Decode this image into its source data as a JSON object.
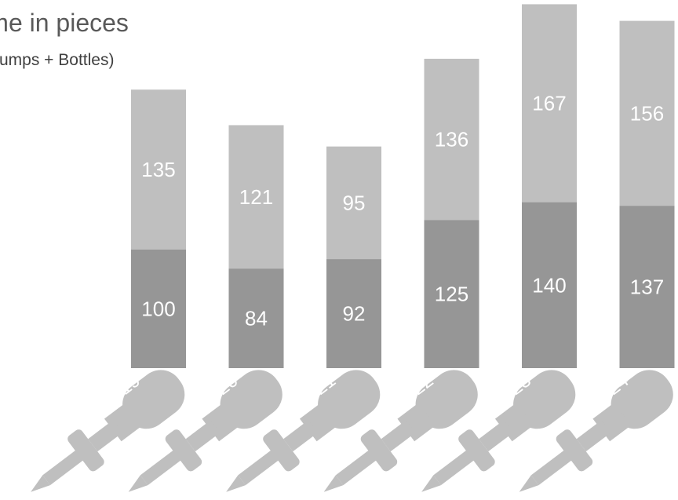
{
  "chart_data": {
    "type": "bar",
    "stacked": true,
    "title": "Volume in pieces",
    "subtitle": "(Pumps + Bottles)",
    "categories": [
      "2019",
      "2020",
      "2021",
      "2022",
      "2023",
      "2024"
    ],
    "series": [
      {
        "values": [
          100,
          84,
          92,
          125,
          140,
          137
        ],
        "color": "#969696"
      },
      {
        "values": [
          135,
          121,
          95,
          136,
          167,
          156
        ],
        "color": "#bfbfbf"
      }
    ],
    "base_shape_color": "#bfbfbf",
    "grid": false,
    "legend": "none"
  }
}
